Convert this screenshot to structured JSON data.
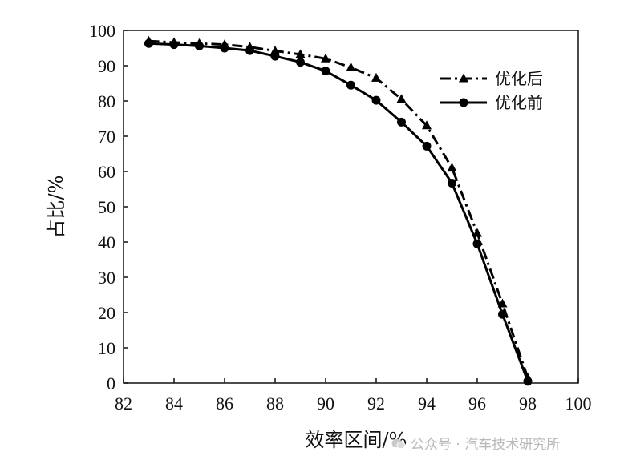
{
  "chart_data": {
    "type": "line",
    "xlabel": "效率区间/%",
    "ylabel": "占比/%",
    "xlim": [
      82,
      100
    ],
    "ylim": [
      0,
      100
    ],
    "xticks": [
      82,
      84,
      86,
      88,
      90,
      92,
      94,
      96,
      98,
      100
    ],
    "yticks": [
      0,
      10,
      20,
      30,
      40,
      50,
      60,
      70,
      80,
      90,
      100
    ],
    "grid": false,
    "legend_position": "top-right",
    "series": [
      {
        "name": "优化后",
        "line_style": "dash-dot",
        "marker": "triangle",
        "color": "#000000",
        "x": [
          83,
          84,
          85,
          86,
          87,
          88,
          89,
          90,
          91,
          92,
          93,
          94,
          95,
          96,
          97,
          98
        ],
        "y": [
          97,
          96.6,
          96.3,
          96,
          95.3,
          94.2,
          93.2,
          92,
          89.5,
          86.5,
          80.5,
          73,
          61,
          42.5,
          22.5,
          1.5
        ]
      },
      {
        "name": "优化前",
        "line_style": "solid",
        "marker": "circle",
        "color": "#000000",
        "x": [
          83,
          84,
          85,
          86,
          87,
          88,
          89,
          90,
          91,
          92,
          93,
          94,
          95,
          96,
          97,
          98
        ],
        "y": [
          96.3,
          96,
          95.6,
          95,
          94.3,
          92.7,
          91,
          88.5,
          84.5,
          80.2,
          74,
          67.2,
          56.7,
          39.5,
          19.5,
          0.5
        ]
      }
    ]
  },
  "watermark": {
    "icon": "wechat-icon",
    "text": "公众号 · 汽车技术研究所"
  }
}
